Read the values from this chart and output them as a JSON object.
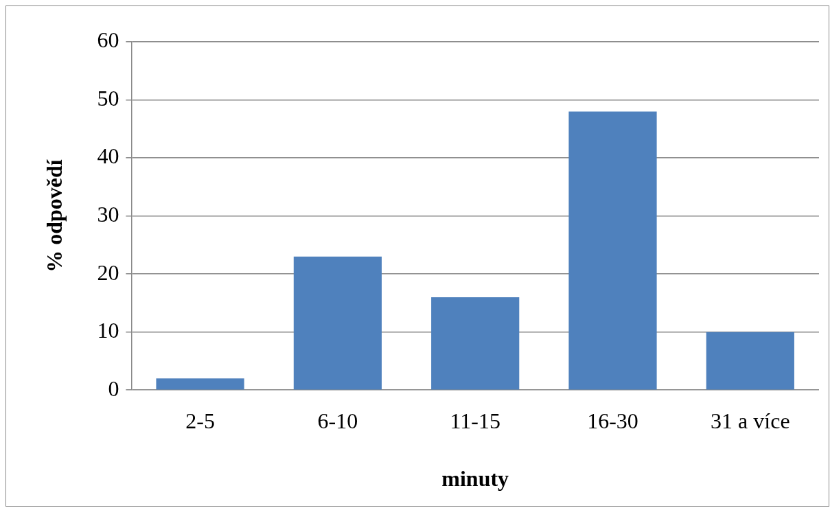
{
  "chart_data": {
    "type": "bar",
    "xlabel": "minuty",
    "ylabel": "% odpovědí",
    "categories": [
      "2-5",
      "6-10",
      "11-15",
      "16-30",
      "31 a více"
    ],
    "values": [
      2,
      23,
      16,
      48,
      10
    ],
    "color": "#4f81bd",
    "ylim": [
      0,
      60
    ],
    "yticks": [
      0,
      10,
      20,
      30,
      40,
      50,
      60
    ],
    "grid": "y",
    "legend": false
  }
}
